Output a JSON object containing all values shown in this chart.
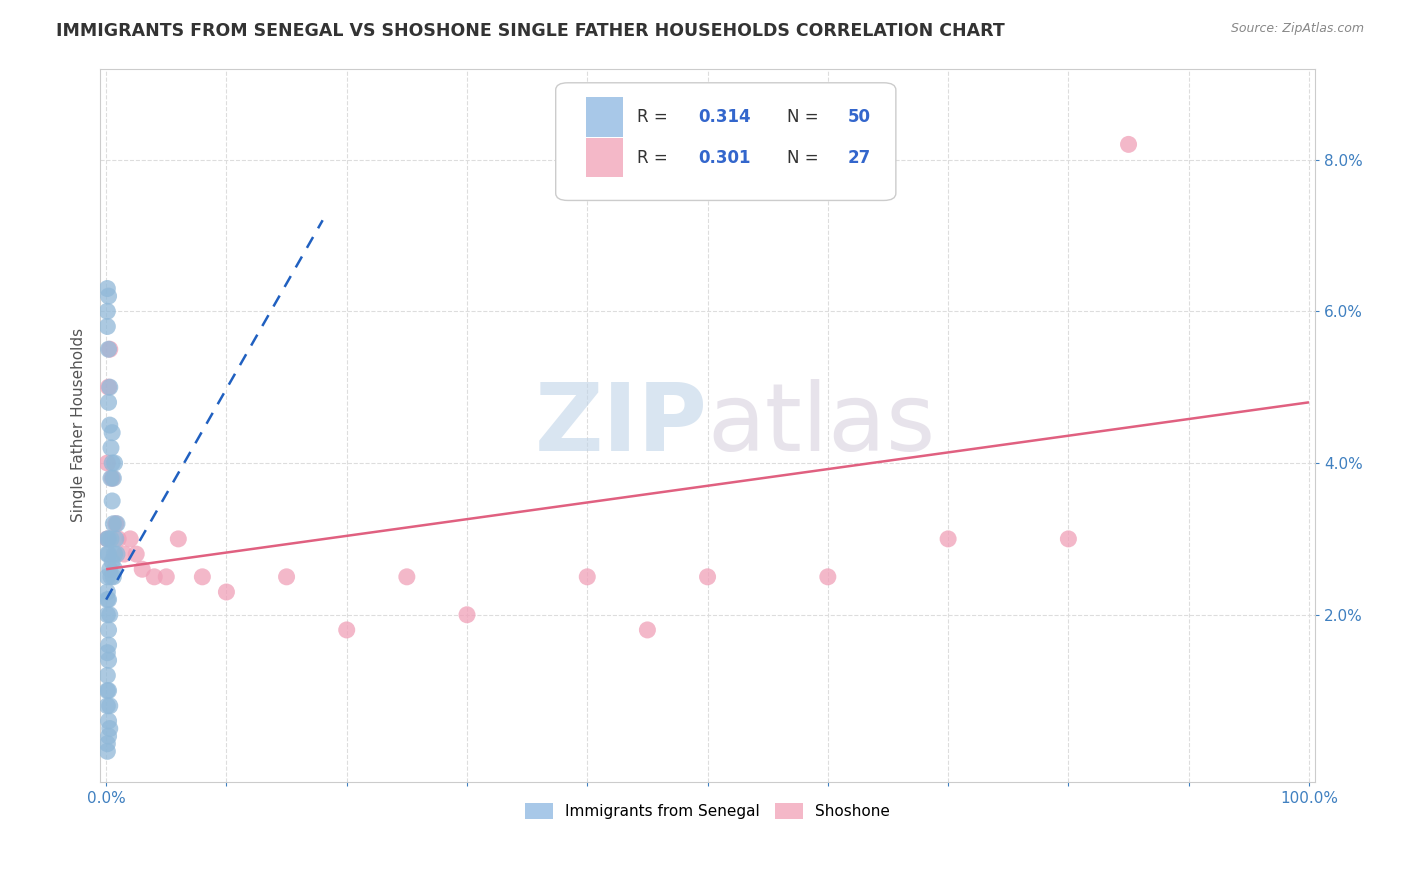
{
  "title": "IMMIGRANTS FROM SENEGAL VS SHOSHONE SINGLE FATHER HOUSEHOLDS CORRELATION CHART",
  "source": "Source: ZipAtlas.com",
  "ylabel": "Single Father Households",
  "watermark": "ZIPatlas",
  "r_senegal": 0.314,
  "n_senegal": 50,
  "r_shoshone": 0.301,
  "n_shoshone": 27,
  "senegal_scatter_color": "#90b8d8",
  "shoshone_scatter_color": "#f0a0b8",
  "senegal_line_color": "#2060c0",
  "shoshone_line_color": "#e06080",
  "legend_senegal_color": "#a8c8e8",
  "legend_shoshone_color": "#f4b8c8",
  "r_n_color": "#3366cc",
  "title_color": "#333333",
  "title_fontsize": 12.5,
  "tick_color": "#4080c0",
  "tick_fontsize": 11,
  "source_color": "#888888",
  "ylabel_color": "#555555",
  "ylabel_fontsize": 11,
  "grid_color": "#dddddd",
  "xlim": [
    -0.005,
    1.005
  ],
  "ylim": [
    -0.002,
    0.092
  ],
  "xticks": [
    0.0,
    0.1,
    0.2,
    0.3,
    0.4,
    0.5,
    0.6,
    0.7,
    0.8,
    0.9,
    1.0
  ],
  "xticklabels_shown": [
    "0.0%",
    "100.0%"
  ],
  "yticks": [
    0.02,
    0.04,
    0.06,
    0.08
  ],
  "yticklabels": [
    "2.0%",
    "4.0%",
    "6.0%",
    "8.0%"
  ],
  "senegal_x": [
    0.001,
    0.001,
    0.001,
    0.002,
    0.002,
    0.002,
    0.003,
    0.003,
    0.004,
    0.004,
    0.005,
    0.005,
    0.005,
    0.006,
    0.006,
    0.007,
    0.007,
    0.008,
    0.009,
    0.009,
    0.001,
    0.001,
    0.002,
    0.002,
    0.003,
    0.004,
    0.004,
    0.005,
    0.006,
    0.007,
    0.001,
    0.001,
    0.002,
    0.003,
    0.001,
    0.001,
    0.002,
    0.002,
    0.001,
    0.002,
    0.001,
    0.001,
    0.002,
    0.001,
    0.003,
    0.002,
    0.003,
    0.002,
    0.001,
    0.001
  ],
  "senegal_y": [
    0.063,
    0.06,
    0.058,
    0.062,
    0.055,
    0.048,
    0.05,
    0.045,
    0.042,
    0.038,
    0.044,
    0.04,
    0.035,
    0.038,
    0.032,
    0.04,
    0.028,
    0.03,
    0.032,
    0.028,
    0.03,
    0.028,
    0.03,
    0.028,
    0.026,
    0.025,
    0.03,
    0.027,
    0.025,
    0.026,
    0.025,
    0.023,
    0.022,
    0.02,
    0.022,
    0.02,
    0.018,
    0.016,
    0.015,
    0.014,
    0.012,
    0.01,
    0.01,
    0.008,
    0.008,
    0.006,
    0.005,
    0.004,
    0.003,
    0.002
  ],
  "shoshone_x": [
    0.001,
    0.001,
    0.002,
    0.003,
    0.005,
    0.008,
    0.01,
    0.015,
    0.02,
    0.025,
    0.03,
    0.04,
    0.05,
    0.06,
    0.08,
    0.1,
    0.15,
    0.2,
    0.25,
    0.3,
    0.4,
    0.45,
    0.5,
    0.6,
    0.7,
    0.8,
    0.85
  ],
  "shoshone_y": [
    0.04,
    0.03,
    0.05,
    0.055,
    0.038,
    0.032,
    0.03,
    0.028,
    0.03,
    0.028,
    0.026,
    0.025,
    0.025,
    0.03,
    0.025,
    0.023,
    0.025,
    0.018,
    0.025,
    0.02,
    0.025,
    0.018,
    0.025,
    0.025,
    0.03,
    0.03,
    0.082
  ],
  "sen_line_x": [
    0.0,
    0.18
  ],
  "sen_line_y": [
    0.022,
    0.072
  ],
  "sho_line_x": [
    0.0,
    1.0
  ],
  "sho_line_y": [
    0.026,
    0.048
  ]
}
